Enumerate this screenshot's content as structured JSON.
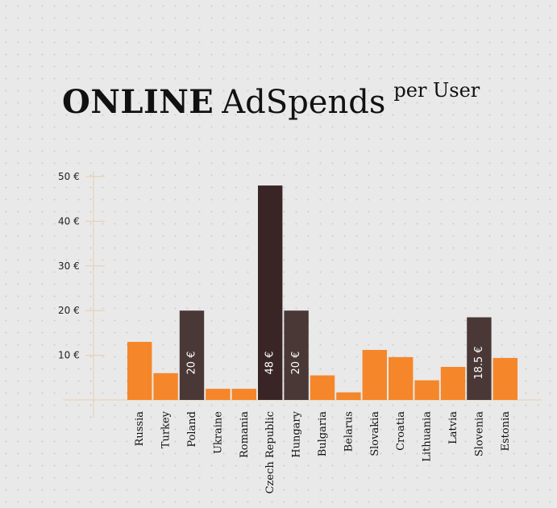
{
  "title": {
    "bold": "ONLINE",
    "regular": "AdSpends",
    "superscript": "per User"
  },
  "colors": {
    "orange": "#f5862a",
    "dark": "#4a3836",
    "darkest": "#3a2526",
    "axis": "#e8cdb2",
    "tick_text": "#222222",
    "label_text": "#111111"
  },
  "chart_data": {
    "type": "bar",
    "title": "ONLINE AdSpends per User",
    "xlabel": "",
    "ylabel": "",
    "ylim": [
      0,
      50
    ],
    "yticks": [
      {
        "value": 10,
        "label": "10 €"
      },
      {
        "value": 20,
        "label": "20 €"
      },
      {
        "value": 30,
        "label": "30 €"
      },
      {
        "value": 40,
        "label": "40 €"
      },
      {
        "value": 50,
        "label": "50 €"
      }
    ],
    "categories": [
      "Russia",
      "Turkey",
      "Poland",
      "Ukraine",
      "Romania",
      "Czech Republic",
      "Hungary",
      "Bulgaria",
      "Belarus",
      "Slovakia",
      "Croatia",
      "Lithuania",
      "Latvia",
      "Slovenia",
      "Estonia"
    ],
    "values": [
      13,
      6,
      20,
      2.5,
      2.5,
      48,
      20,
      5.5,
      1.7,
      11.2,
      9.6,
      4.4,
      7.4,
      18.5,
      9.4
    ],
    "bar_labels": [
      "",
      "",
      "20 €",
      "",
      "",
      "48 €",
      "20 €",
      "",
      "",
      "",
      "",
      "",
      "",
      "18.5 €",
      ""
    ],
    "bar_colors": [
      "orange",
      "orange",
      "dark",
      "orange",
      "orange",
      "darkest",
      "dark",
      "orange",
      "orange",
      "orange",
      "orange",
      "orange",
      "orange",
      "dark",
      "orange"
    ]
  }
}
